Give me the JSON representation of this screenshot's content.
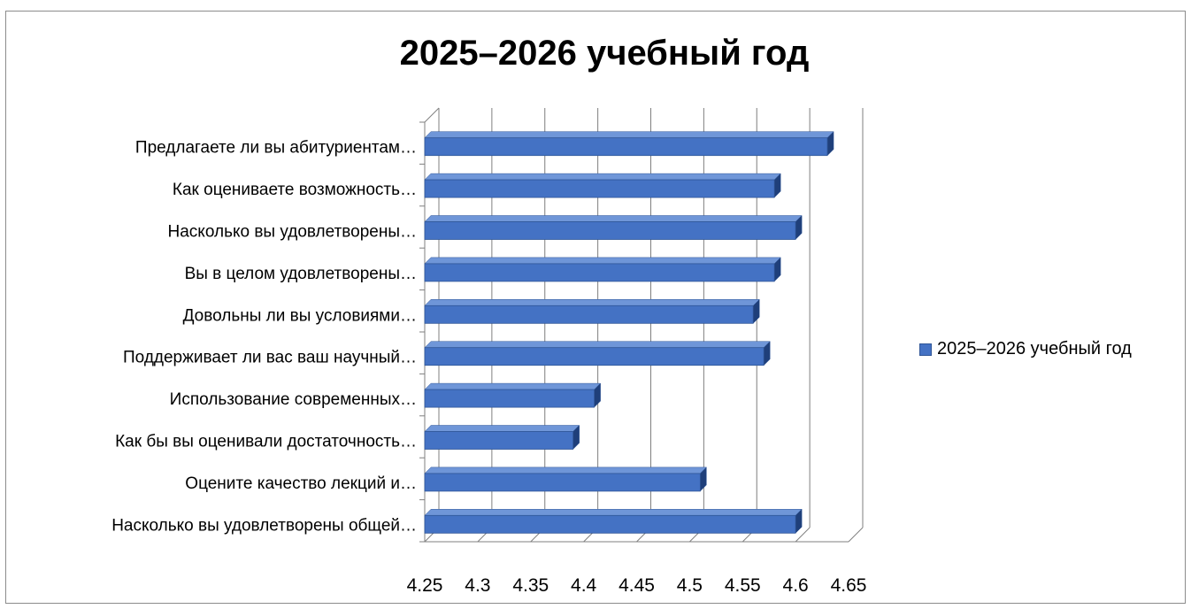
{
  "chart_data": {
    "type": "bar",
    "orientation": "horizontal",
    "title": "2025–2026 учебный год",
    "categories": [
      "Предлагаете ли вы абитуриентам…",
      "Как оцениваете возможность…",
      "Насколько вы удовлетворены…",
      "Вы в целом удовлетворены…",
      "Довольны ли вы условиями…",
      "Поддерживает ли вас ваш научный…",
      "Использование современных…",
      "Как бы вы оценивали достаточность…",
      "Оцените качество лекций и…",
      "Насколько вы удовлетворены общей…"
    ],
    "series": [
      {
        "name": "2025–2026 учебный год",
        "values": [
          4.63,
          4.58,
          4.6,
          4.58,
          4.56,
          4.57,
          4.41,
          4.39,
          4.51,
          4.6
        ]
      }
    ],
    "xlim": [
      4.25,
      4.65
    ],
    "xticks": [
      "4.25",
      "4.3",
      "4.35",
      "4.4",
      "4.45",
      "4.5",
      "4.55",
      "4.6",
      "4.65"
    ],
    "grid": true,
    "legend_position": "right",
    "colors": {
      "bar": "#4472c4",
      "bar_edge": "#2f5597",
      "bar_side": "#1f3f7a",
      "grid": "#7f7f7f"
    }
  }
}
